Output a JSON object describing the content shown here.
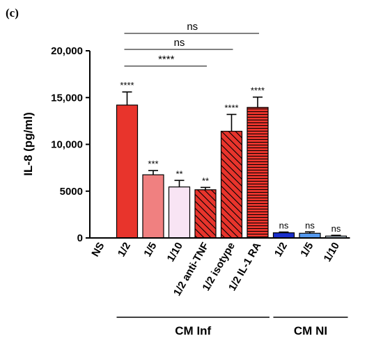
{
  "panel_label": "(c)",
  "chart_data": {
    "type": "bar",
    "ylabel": "IL-8 (pg/ml)",
    "ylim": [
      0,
      20000
    ],
    "yticks": [
      0,
      5000,
      10000,
      15000,
      20000
    ],
    "ytick_labels": [
      "0",
      "5000",
      "10,000",
      "15,000",
      "20,000"
    ],
    "grid": false,
    "categories": [
      "NS",
      "1/2",
      "1/5",
      "1/10",
      "1/2 anti-TNF",
      "1/2 isotype",
      "1/2 IL-1 RA",
      "1/2",
      "1/5",
      "1/10"
    ],
    "values": [
      0,
      14200,
      6750,
      5450,
      5150,
      11400,
      13950,
      550,
      500,
      200
    ],
    "errors": [
      0,
      1400,
      450,
      700,
      250,
      1800,
      1100,
      80,
      150,
      80
    ],
    "annotations": [
      "",
      "****",
      "***",
      "**",
      "**",
      "****",
      "****",
      "ns",
      "ns",
      "ns"
    ],
    "bar_colors": [
      "#ffffff",
      "#e8342c",
      "#f08080",
      "#f8e4f4",
      "#e8342c",
      "#e8342c",
      "#e8342c",
      "#1a2fcc",
      "#5599ee",
      "#d9e8f4"
    ],
    "bar_patterns": [
      "none",
      "none",
      "none",
      "none",
      "diag",
      "diag",
      "horiz",
      "none",
      "none",
      "none"
    ],
    "groups": [
      {
        "label": "CM Inf",
        "start": 1,
        "end": 6
      },
      {
        "label": "CM NI",
        "start": 7,
        "end": 9
      }
    ],
    "comparisons": [
      {
        "from": 1,
        "to": 6,
        "label": "ns"
      },
      {
        "from": 1,
        "to": 5,
        "label": "ns"
      },
      {
        "from": 1,
        "to": 4,
        "label": "****"
      }
    ]
  }
}
